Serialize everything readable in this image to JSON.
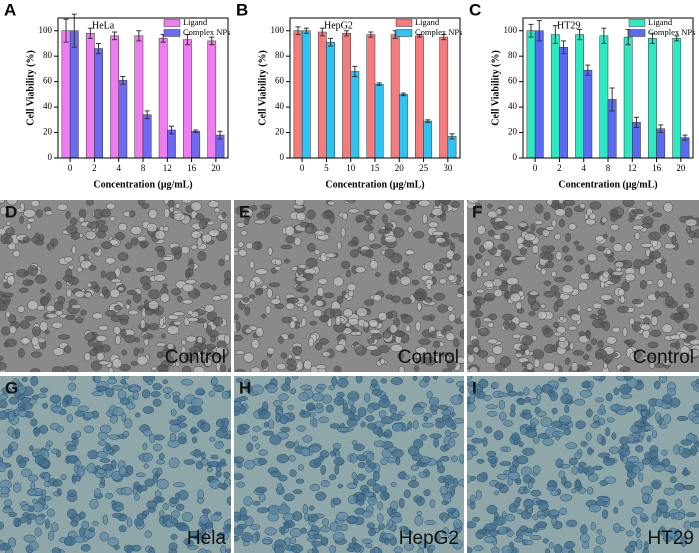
{
  "chart_data": [
    {
      "type": "bar",
      "panel_label": "A",
      "annotation": "HeLa",
      "xlabel": "Concentration (μg/mL)",
      "ylabel": "Cell Viability (%)",
      "categories": [
        "0",
        "2",
        "4",
        "8",
        "12",
        "16",
        "20"
      ],
      "series": [
        {
          "name": "Ligand",
          "color": "#f07cf0",
          "values": [
            100,
            98,
            96,
            96,
            94,
            93,
            92
          ],
          "errors": [
            9,
            4,
            3,
            4,
            3,
            4,
            3
          ]
        },
        {
          "name": "Complex NPs",
          "color": "#6a6af2",
          "values": [
            100,
            86,
            61,
            34,
            22,
            21,
            18
          ],
          "errors": [
            13,
            4,
            3,
            3,
            3,
            1,
            3
          ]
        }
      ],
      "ylim": [
        0,
        110
      ],
      "yticks": [
        0,
        20,
        40,
        60,
        80,
        100
      ],
      "legend": "upper right"
    },
    {
      "type": "bar",
      "panel_label": "B",
      "annotation": "HepG2",
      "xlabel": "Concentration (μg/mL)",
      "ylabel": "Cell Viability (%)",
      "categories": [
        "0",
        "5",
        "10",
        "15",
        "20",
        "25",
        "30"
      ],
      "series": [
        {
          "name": "Ligand",
          "color": "#f47c7c",
          "values": [
            100,
            99,
            98,
            97,
            97,
            96,
            95
          ],
          "errors": [
            3,
            3,
            2,
            2,
            3,
            1,
            2
          ]
        },
        {
          "name": "Complex NPs",
          "color": "#2cc4f2",
          "values": [
            100,
            91,
            68,
            58,
            50,
            29,
            17
          ],
          "errors": [
            2,
            3,
            4,
            1,
            1,
            1,
            2
          ]
        }
      ],
      "ylim": [
        0,
        110
      ],
      "yticks": [
        0,
        20,
        40,
        60,
        80,
        100
      ],
      "legend": "upper right"
    },
    {
      "type": "bar",
      "panel_label": "C",
      "annotation": "HT29",
      "xlabel": "Concentration (μg/mL)",
      "ylabel": "Cell Viability (%)",
      "categories": [
        "0",
        "2",
        "4",
        "8",
        "12",
        "16",
        "20"
      ],
      "series": [
        {
          "name": "Ligand",
          "color": "#2de8c0",
          "values": [
            100,
            97,
            97,
            96,
            95,
            94,
            94
          ],
          "errors": [
            5,
            7,
            4,
            6,
            6,
            4,
            2
          ]
        },
        {
          "name": "Complex NPs",
          "color": "#5a6af2",
          "values": [
            100,
            87,
            69,
            46,
            28,
            23,
            16
          ],
          "errors": [
            8,
            5,
            4,
            9,
            4,
            3,
            2
          ]
        }
      ],
      "ylim": [
        0,
        110
      ],
      "yticks": [
        0,
        20,
        40,
        60,
        80,
        100
      ],
      "legend": "upper right"
    }
  ],
  "micrographs": [
    {
      "label": "D",
      "caption": "Control"
    },
    {
      "label": "E",
      "caption": "Control"
    },
    {
      "label": "F",
      "caption": "Control"
    },
    {
      "label": "G",
      "caption": "Hela"
    },
    {
      "label": "H",
      "caption": "HepG2"
    },
    {
      "label": "I",
      "caption": "HT29"
    }
  ]
}
